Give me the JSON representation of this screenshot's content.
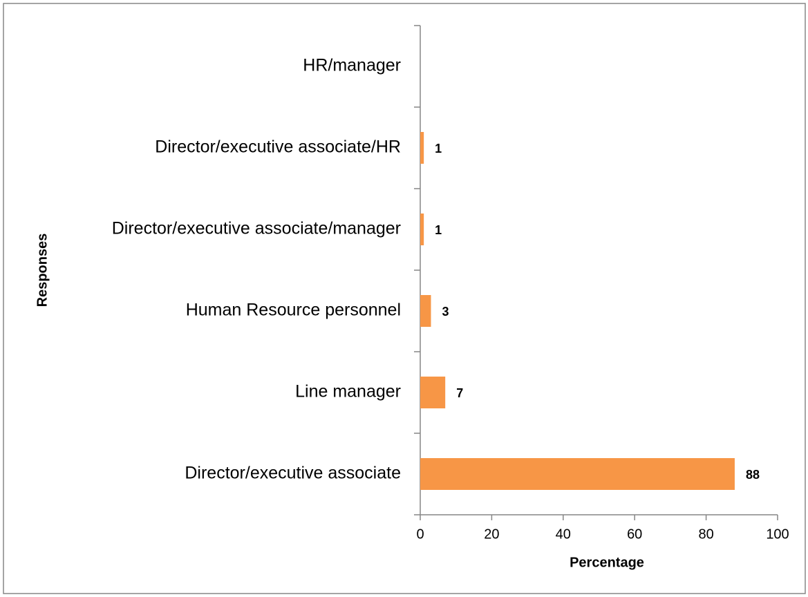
{
  "chart_data": {
    "type": "barh",
    "categories": [
      "Director/executive associate",
      "Line manager",
      "Human Resource personnel",
      "Director/executive associate/manager",
      "Director/executive associate/HR",
      "HR/manager"
    ],
    "values": [
      88,
      7,
      3,
      1,
      1,
      null
    ],
    "color": "#f79646",
    "xlabel": "Percentage",
    "ylabel": "Responses",
    "xlim": [
      0,
      100
    ],
    "xticks": [
      0,
      20,
      40,
      60,
      80,
      100
    ],
    "grid": false
  }
}
